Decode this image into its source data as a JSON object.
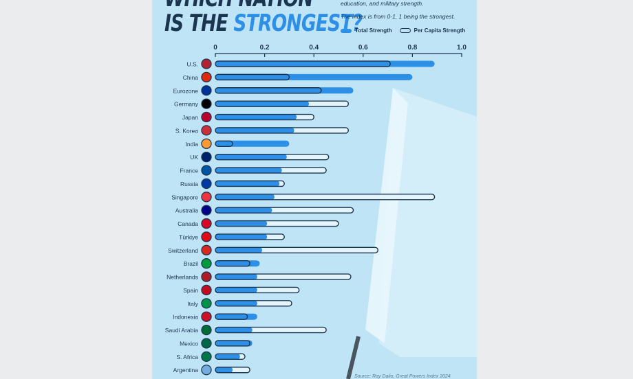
{
  "header": {
    "title_line1": "WHICH NATION",
    "title_line2_prefix": "IS THE ",
    "title_line2_accent": "STRONGEST?",
    "subtitle": "education, and military strength.",
    "index_note": "The index is from 0-1, 1 being the strongest."
  },
  "source": "Source: Ray Dalio, Great Powers Index 2024",
  "colors": {
    "total": "#2e8fe6",
    "per_capita_outline": "#1b3550",
    "background": "#bfe4f6"
  },
  "chart_data": {
    "type": "bar",
    "orientation": "horizontal",
    "xlim": [
      0,
      1.0
    ],
    "ticks": [
      "0",
      "0.2",
      "0.4",
      "0.6",
      "0.8",
      "1.0"
    ],
    "tick_values": [
      0,
      0.2,
      0.4,
      0.6,
      0.8,
      1.0
    ],
    "legend": [
      "Total Strength",
      "Per Capita Strength"
    ],
    "legend_position": "top-right",
    "categories": [
      "U.S.",
      "China",
      "Eurozone",
      "Germany",
      "Japan",
      "S. Korea",
      "India",
      "UK",
      "France",
      "Russia",
      "Singapore",
      "Australia",
      "Canada",
      "Türkiye",
      "Switzerland",
      "Brazil",
      "Netherlands",
      "Spain",
      "Italy",
      "Indonesia",
      "Saudi Arabia",
      "Mexico",
      "S. Africa",
      "Argentina"
    ],
    "series": [
      {
        "name": "Total Strength",
        "values": [
          0.89,
          0.8,
          0.56,
          0.38,
          0.33,
          0.32,
          0.3,
          0.29,
          0.27,
          0.26,
          0.24,
          0.23,
          0.21,
          0.21,
          0.19,
          0.18,
          0.17,
          0.17,
          0.17,
          0.17,
          0.15,
          0.15,
          0.1,
          0.07
        ]
      },
      {
        "name": "Per Capita Strength",
        "values": [
          0.71,
          0.3,
          0.43,
          0.54,
          0.4,
          0.54,
          0.07,
          0.46,
          0.45,
          0.28,
          0.89,
          0.56,
          0.5,
          0.28,
          0.66,
          0.14,
          0.55,
          0.34,
          0.31,
          0.13,
          0.45,
          0.14,
          0.12,
          0.14
        ]
      }
    ],
    "flag_colors": [
      "#b22234",
      "#de2910",
      "#003399",
      "#000000",
      "#bc002d",
      "#cd2e3a",
      "#ff9933",
      "#012169",
      "#0055a4",
      "#0039a6",
      "#ef3340",
      "#00008b",
      "#d80621",
      "#e30a17",
      "#da291c",
      "#009c3b",
      "#ae1c28",
      "#c60b1e",
      "#009246",
      "#ce1126",
      "#006c35",
      "#006847",
      "#007749",
      "#74acdf"
    ]
  }
}
